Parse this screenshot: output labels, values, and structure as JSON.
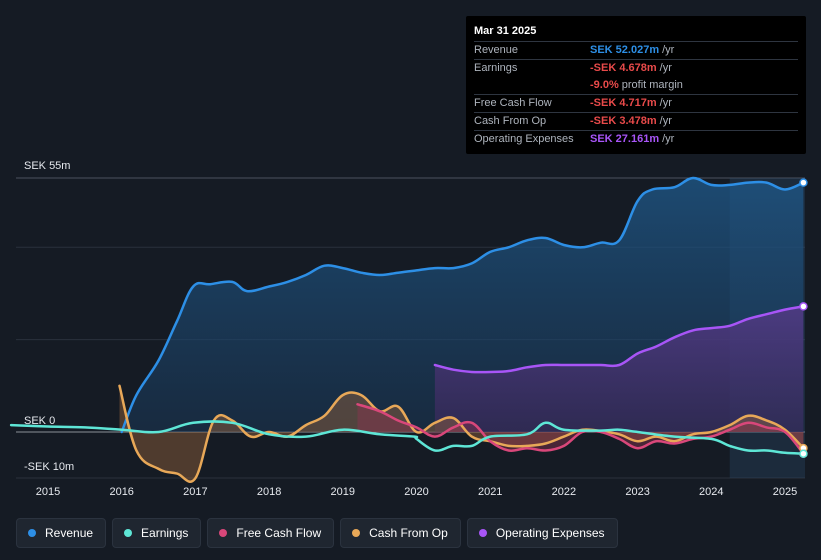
{
  "tooltip": {
    "date": "Mar 31 2025",
    "rows": [
      {
        "label": "Revenue",
        "value": "SEK 52.027m",
        "unit": "/yr",
        "color": "#2d8fe6"
      },
      {
        "label": "Earnings",
        "value": "-SEK 4.678m",
        "unit": "/yr",
        "color": "#e84a4a"
      },
      {
        "label": "",
        "value": "-9.0%",
        "unit": "profit margin",
        "color": "#e84a4a"
      },
      {
        "label": "Free Cash Flow",
        "value": "-SEK 4.717m",
        "unit": "/yr",
        "color": "#e84a4a"
      },
      {
        "label": "Cash From Op",
        "value": "-SEK 3.478m",
        "unit": "/yr",
        "color": "#e84a4a"
      },
      {
        "label": "Operating Expenses",
        "value": "SEK 27.161m",
        "unit": "/yr",
        "color": "#a855f7"
      }
    ]
  },
  "legend": [
    {
      "label": "Revenue",
      "color": "#2d8fe6"
    },
    {
      "label": "Earnings",
      "color": "#5ee6d6"
    },
    {
      "label": "Free Cash Flow",
      "color": "#d9477a"
    },
    {
      "label": "Cash From Op",
      "color": "#e8a858"
    },
    {
      "label": "Operating Expenses",
      "color": "#a855f7"
    }
  ],
  "chart_data": {
    "type": "area",
    "title": "",
    "xlabel": "",
    "ylabel": "SEK",
    "ylim": [
      -10,
      55
    ],
    "y_tick_labels": [
      "SEK 55m",
      "SEK 0",
      "-SEK 10m"
    ],
    "x_tick_labels": [
      "2015",
      "2016",
      "2017",
      "2018",
      "2019",
      "2020",
      "2021",
      "2022",
      "2023",
      "2024",
      "2025"
    ],
    "forecast_shade_from": 2024.25,
    "series": [
      {
        "name": "Revenue",
        "color": "#2d8fe6",
        "x": [
          2016.0,
          2016.2,
          2016.5,
          2016.75,
          2016.97,
          2017.2,
          2017.5,
          2017.7,
          2018.0,
          2018.25,
          2018.5,
          2018.75,
          2019.0,
          2019.25,
          2019.5,
          2019.75,
          2020.0,
          2020.25,
          2020.5,
          2020.75,
          2021.0,
          2021.25,
          2021.5,
          2021.75,
          2022.0,
          2022.25,
          2022.5,
          2022.75,
          2023.0,
          2023.2,
          2023.5,
          2023.75,
          2024.0,
          2024.25,
          2024.5,
          2024.75,
          2025.0,
          2025.25
        ],
        "values": [
          0,
          8,
          15.5,
          24,
          31.5,
          32,
          32.5,
          30.5,
          31.5,
          32.5,
          34,
          36,
          35.5,
          34.5,
          34,
          34.5,
          35,
          35.5,
          35.5,
          36.5,
          39,
          40,
          41.5,
          42,
          40.5,
          40,
          41,
          41.5,
          50,
          52.5,
          53,
          55,
          53.5,
          53.5,
          54,
          54,
          52.5,
          54
        ]
      },
      {
        "name": "Earnings",
        "color": "#5ee6d6",
        "x": [
          2014.5,
          2015.0,
          2015.5,
          2016.0,
          2016.5,
          2016.97,
          2017.5,
          2018.0,
          2018.5,
          2019.0,
          2019.5,
          2019.97,
          2020.0,
          2020.25,
          2020.5,
          2020.75,
          2021.0,
          2021.5,
          2021.75,
          2022.0,
          2022.5,
          2022.75,
          2023.0,
          2023.5,
          2024.0,
          2024.25,
          2024.5,
          2024.75,
          2025.0,
          2025.25
        ],
        "values": [
          1.5,
          1.2,
          1.0,
          0.5,
          0,
          2,
          2,
          -0.5,
          -1,
          0.5,
          -0.5,
          -1,
          -1.5,
          -4,
          -3,
          -3,
          -1,
          -0.5,
          2,
          0.5,
          0.3,
          0.5,
          0,
          -1,
          -1.5,
          -3,
          -4,
          -4,
          -4.5,
          -4.7
        ]
      },
      {
        "name": "Free Cash Flow",
        "color": "#d9477a",
        "x": [
          2019.2,
          2019.5,
          2019.75,
          2020.0,
          2020.25,
          2020.5,
          2020.75,
          2021.0,
          2021.25,
          2021.5,
          2021.75,
          2022.0,
          2022.25,
          2022.5,
          2022.75,
          2023.0,
          2023.25,
          2023.5,
          2023.75,
          2024.0,
          2024.25,
          2024.5,
          2024.75,
          2025.0,
          2025.25
        ],
        "values": [
          6,
          4.5,
          2.5,
          1,
          -1,
          1,
          2,
          -2,
          -4,
          -3.5,
          -4,
          -3,
          0,
          0,
          -1.5,
          -3.5,
          -2,
          -2.5,
          -1.5,
          -1,
          0.5,
          2,
          1,
          0,
          -4.7
        ]
      },
      {
        "name": "Cash From Op",
        "color": "#e8a858",
        "x": [
          2015.97,
          2016.2,
          2016.5,
          2016.75,
          2017.0,
          2017.25,
          2017.5,
          2017.75,
          2018.0,
          2018.25,
          2018.5,
          2018.75,
          2019.0,
          2019.25,
          2019.5,
          2019.75,
          2020.0,
          2020.25,
          2020.5,
          2020.75,
          2021.0,
          2021.25,
          2021.5,
          2021.75,
          2022.0,
          2022.25,
          2022.5,
          2022.75,
          2023.0,
          2023.25,
          2023.5,
          2023.75,
          2024.0,
          2024.25,
          2024.5,
          2024.75,
          2025.0,
          2025.25
        ],
        "values": [
          10,
          -4,
          -8,
          -9,
          -10,
          2.5,
          2.5,
          -1,
          0,
          -1,
          1.5,
          3.5,
          8,
          8,
          4.5,
          5.5,
          0,
          2,
          3,
          -1,
          -2,
          -3,
          -3,
          -2.5,
          -1,
          0.5,
          0.2,
          -0.5,
          -2,
          -1,
          -2,
          -0.5,
          0,
          1.5,
          3.5,
          2.5,
          0.5,
          -3.5
        ]
      },
      {
        "name": "Operating Expenses",
        "color": "#a855f7",
        "x": [
          2020.25,
          2020.5,
          2020.75,
          2021.0,
          2021.25,
          2021.5,
          2021.75,
          2022.0,
          2022.25,
          2022.5,
          2022.75,
          2023.0,
          2023.25,
          2023.5,
          2023.75,
          2024.0,
          2024.25,
          2024.5,
          2024.75,
          2025.0,
          2025.25
        ],
        "values": [
          14.5,
          13.5,
          13,
          13,
          13.2,
          14,
          14.5,
          14.5,
          14.5,
          14.5,
          14.5,
          17,
          18.5,
          20.5,
          22,
          22.5,
          23,
          24.5,
          25.5,
          26.5,
          27.2
        ]
      }
    ]
  }
}
